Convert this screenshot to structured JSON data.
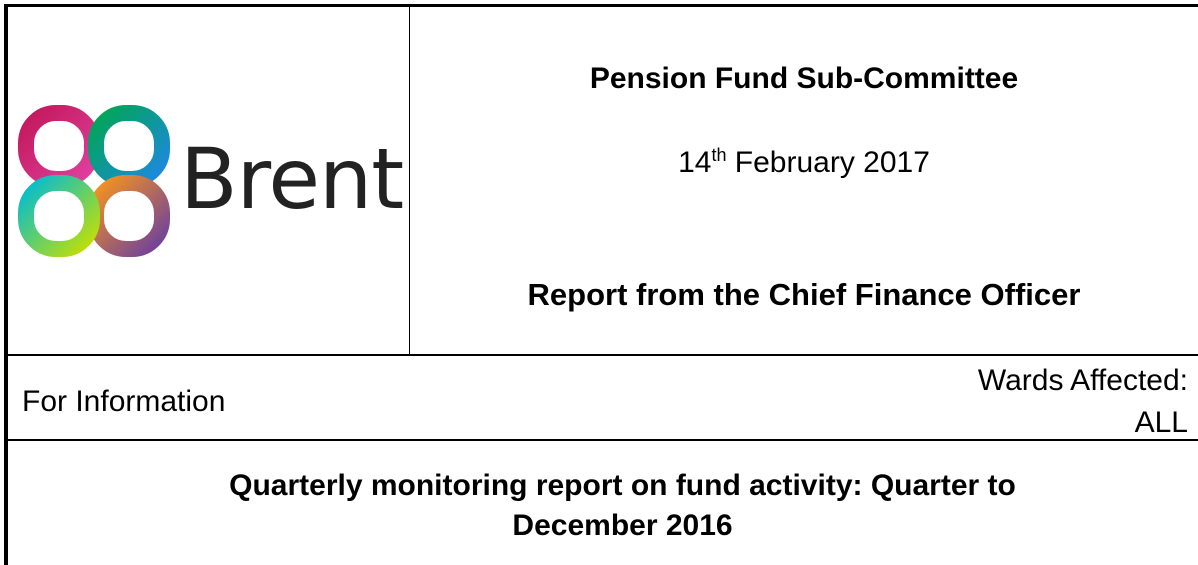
{
  "header": {
    "title": "Pension Fund Sub-Committee",
    "date": {
      "day": "14",
      "suffix": "th",
      "rest": "February 2017"
    },
    "report_from": "Report from the Chief Finance Officer",
    "logo_text": "Brent"
  },
  "info": {
    "status": "For Information",
    "wards_label": "Wards Affected:",
    "wards_value": "ALL"
  },
  "subject": {
    "line1": "Quarterly monitoring report on fund activity: Quarter to",
    "line2": "December 2016"
  }
}
